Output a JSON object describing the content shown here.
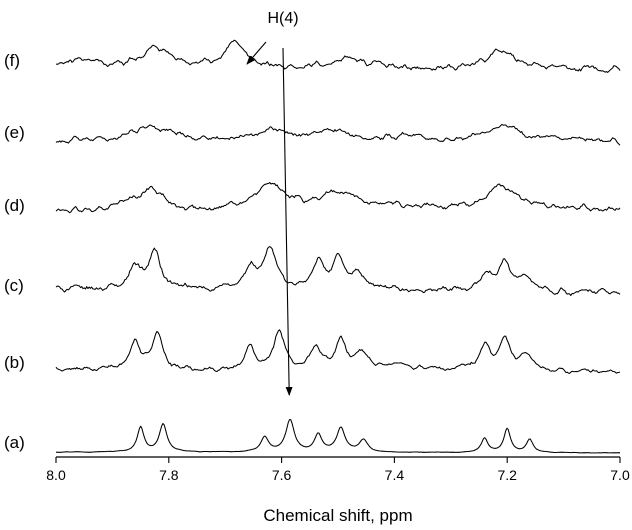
{
  "chart_data": {
    "type": "line",
    "title": "",
    "xlabel": "Chemical shift, ppm",
    "ylabel": "",
    "xlim": [
      8.0,
      7.0
    ],
    "x_reversed": true,
    "x_ticks": [
      "8.0",
      "7.8",
      "7.6",
      "7.4",
      "7.2",
      "7.0"
    ],
    "x_tick_values": [
      8.0,
      7.8,
      7.6,
      7.4,
      7.2,
      7.0
    ],
    "y_axis_shown": false,
    "grid": false,
    "legend": "none",
    "series": [
      {
        "name": "(a)",
        "base": 0,
        "noise": 0.25,
        "offset": 0,
        "end": 1,
        "peaks": [
          [
            7.85,
            25,
            0.007
          ],
          [
            7.81,
            28,
            0.008
          ],
          [
            7.63,
            15,
            0.008
          ],
          [
            7.585,
            32,
            0.009
          ],
          [
            7.535,
            17,
            0.008
          ],
          [
            7.495,
            24,
            0.009
          ],
          [
            7.455,
            12,
            0.009
          ],
          [
            7.24,
            14,
            0.007
          ],
          [
            7.2,
            24,
            0.007
          ],
          [
            7.16,
            13,
            0.007
          ]
        ]
      },
      {
        "name": "(b)",
        "base": 80,
        "noise": 2.0,
        "offset": -2,
        "end": 0,
        "peaks": [
          [
            7.86,
            28,
            0.011
          ],
          [
            7.82,
            36,
            0.011
          ],
          [
            7.655,
            22,
            0.011
          ],
          [
            7.605,
            38,
            0.012
          ],
          [
            7.54,
            24,
            0.011
          ],
          [
            7.495,
            28,
            0.011
          ],
          [
            7.46,
            16,
            0.012
          ],
          [
            7.24,
            24,
            0.011
          ],
          [
            7.205,
            32,
            0.011
          ],
          [
            7.165,
            18,
            0.011
          ],
          [
            7.4,
            6,
            0.05
          ]
        ]
      },
      {
        "name": "(c)",
        "base": 157,
        "noise": 2.4,
        "offset": -6,
        "end": -2,
        "peaks": [
          [
            7.86,
            24,
            0.012
          ],
          [
            7.825,
            38,
            0.012
          ],
          [
            7.655,
            21,
            0.012
          ],
          [
            7.62,
            40,
            0.014
          ],
          [
            7.535,
            27,
            0.011
          ],
          [
            7.5,
            34,
            0.012
          ],
          [
            7.465,
            16,
            0.012
          ],
          [
            7.24,
            16,
            0.014
          ],
          [
            7.205,
            27,
            0.014
          ],
          [
            7.17,
            15,
            0.014
          ]
        ]
      },
      {
        "name": "(d)",
        "base": 237,
        "noise": 2.6,
        "offset": -3,
        "end": -5,
        "peaks": [
          [
            7.83,
            22,
            0.025
          ],
          [
            7.88,
            8,
            0.02
          ],
          [
            7.62,
            25,
            0.03
          ],
          [
            7.5,
            17,
            0.045
          ],
          [
            7.21,
            23,
            0.035
          ],
          [
            7.4,
            4,
            0.04
          ]
        ]
      },
      {
        "name": "(e)",
        "base": 310,
        "noise": 2.4,
        "offset": 0,
        "end": 0,
        "peaks": [
          [
            7.83,
            16,
            0.04
          ],
          [
            7.62,
            12,
            0.04
          ],
          [
            7.51,
            9,
            0.04
          ],
          [
            7.21,
            17,
            0.04
          ],
          [
            7.38,
            6,
            0.03
          ]
        ]
      },
      {
        "name": "(f)",
        "base": 382,
        "noise": 2.6,
        "offset": -2,
        "end": 0,
        "peaks": [
          [
            7.82,
            20,
            0.03
          ],
          [
            7.685,
            22,
            0.025
          ],
          [
            7.48,
            9,
            0.04
          ],
          [
            7.21,
            18,
            0.035
          ],
          [
            7.95,
            8,
            0.03
          ]
        ]
      }
    ],
    "annotations": [
      {
        "label": "H(4)",
        "x": 7.59
      }
    ]
  }
}
